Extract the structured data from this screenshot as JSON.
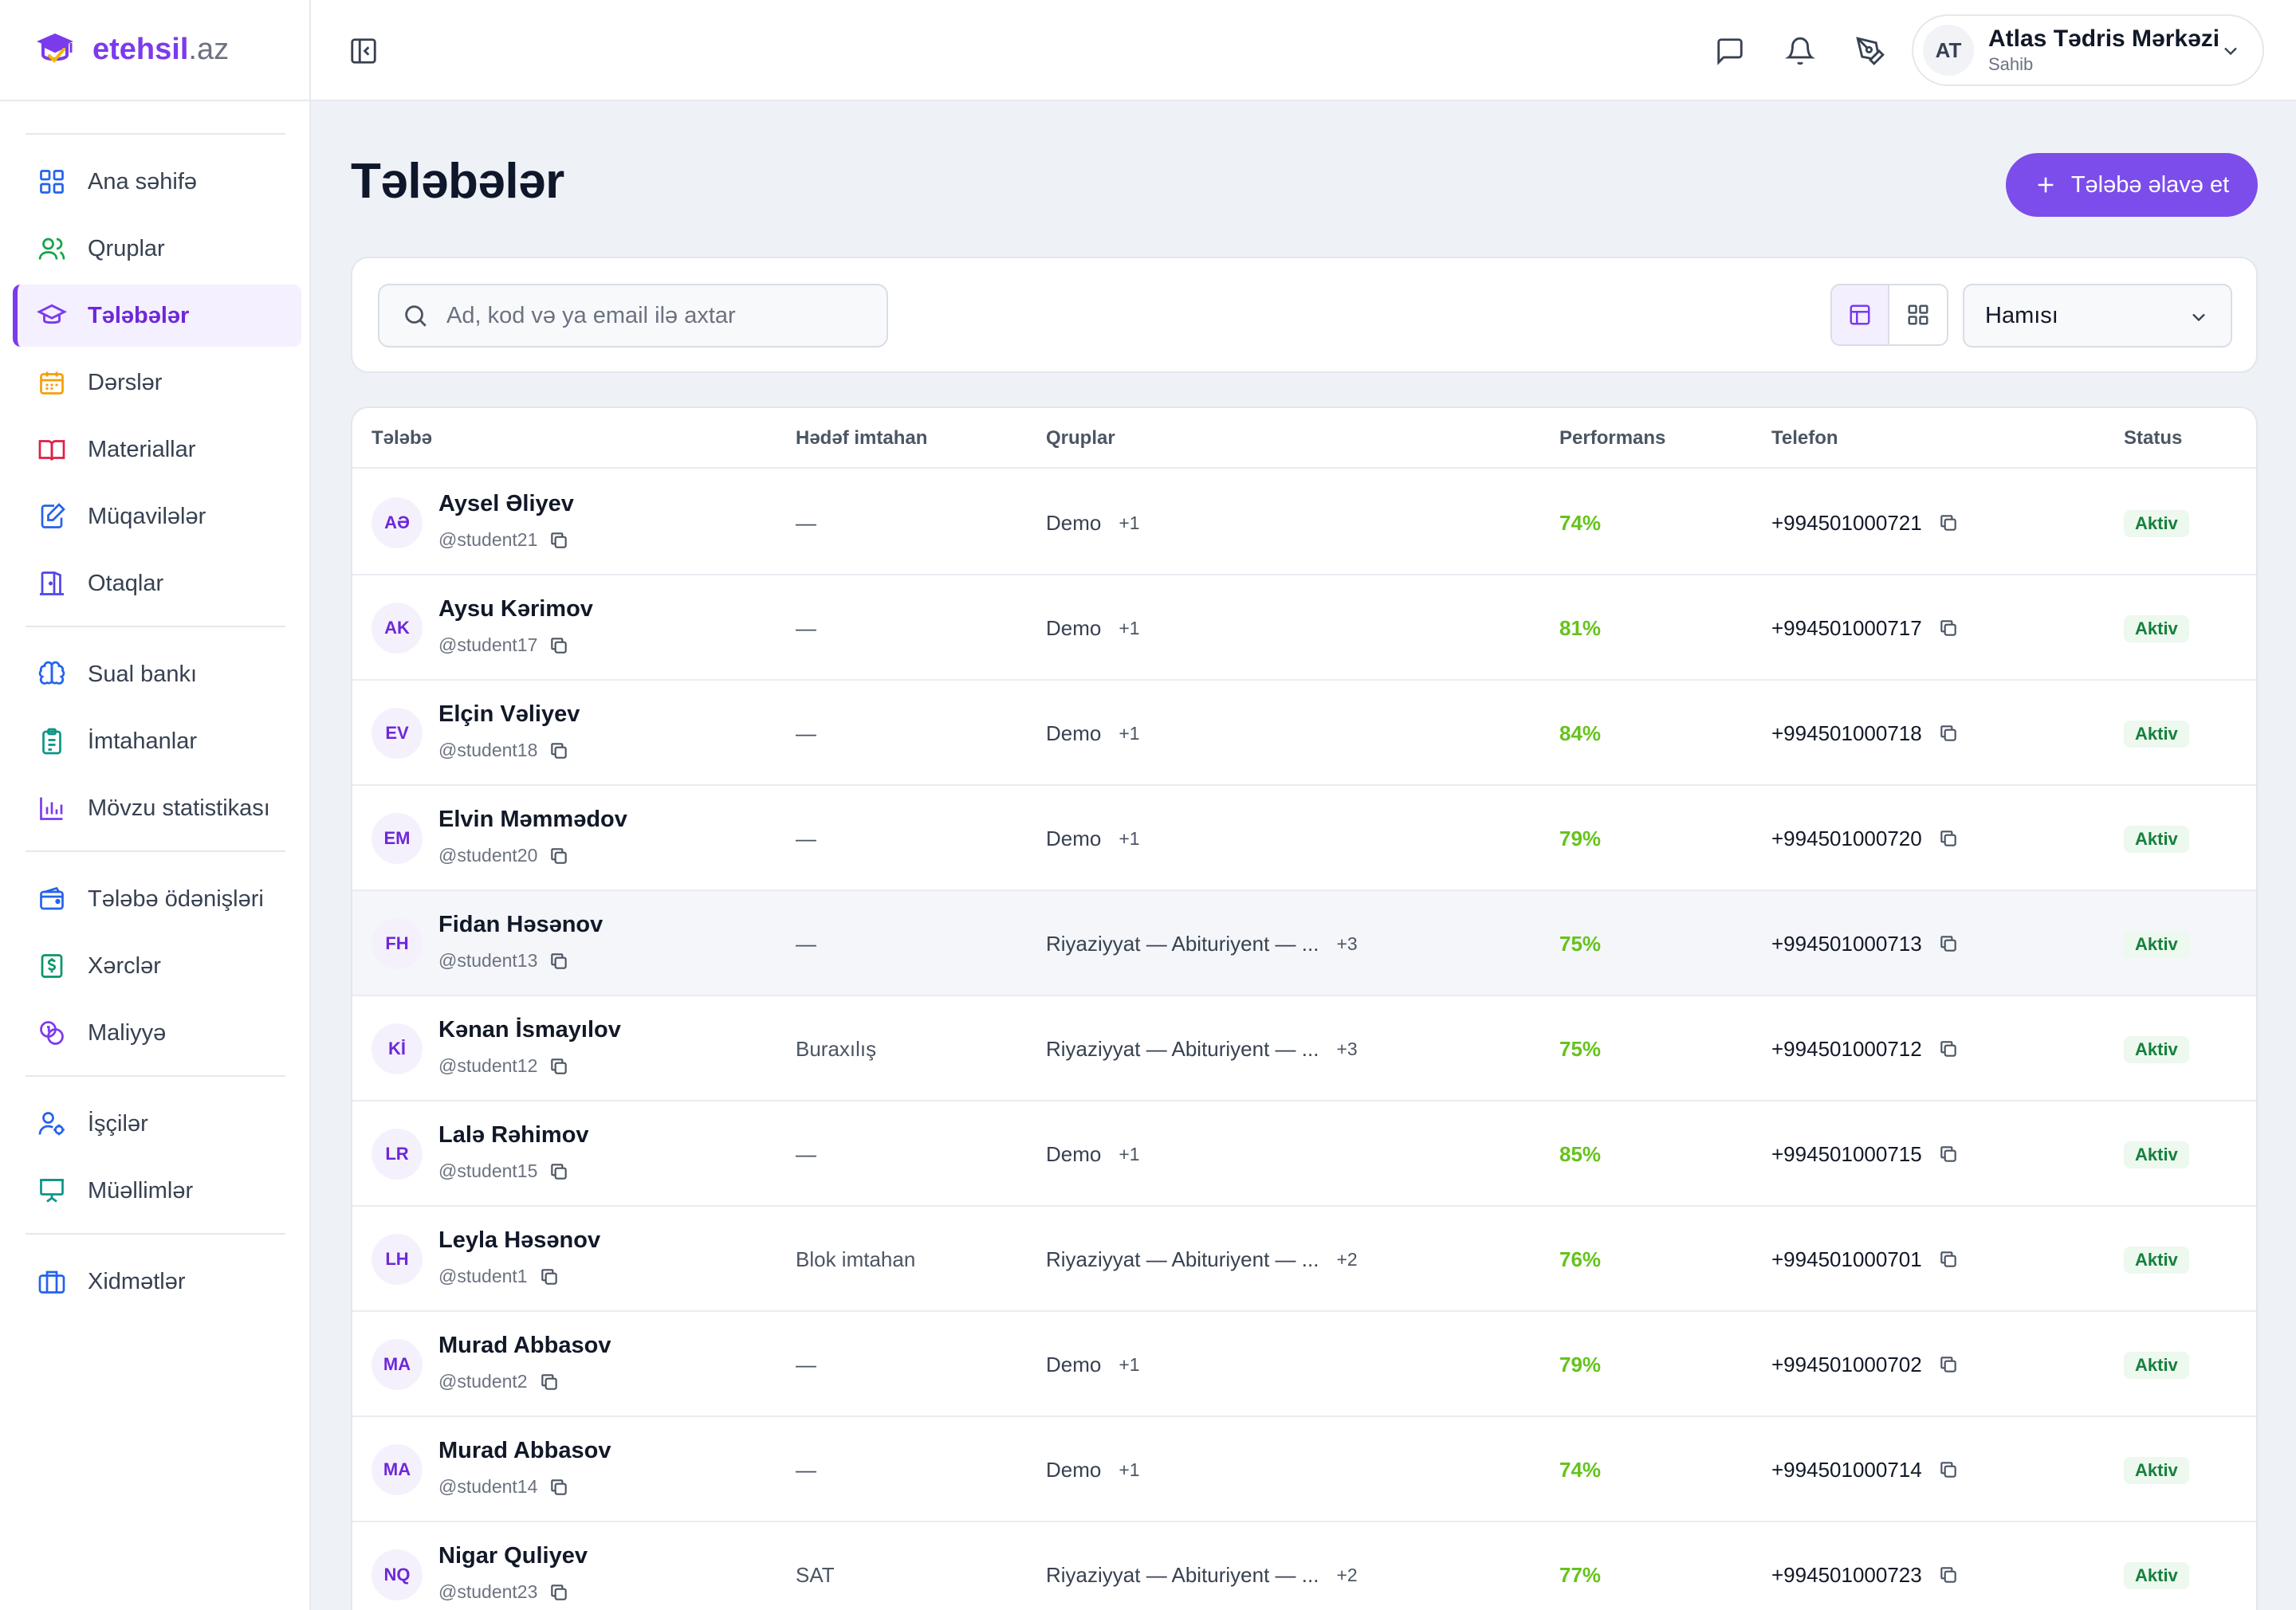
{
  "brand": {
    "name": "etehsil",
    "tld": ".az"
  },
  "sidebar": {
    "items": [
      {
        "label": "Ana səhifə",
        "icon": "grid-icon"
      },
      {
        "label": "Qruplar",
        "icon": "users-icon"
      },
      {
        "label": "Tələbələr",
        "icon": "graduation-cap-icon",
        "active": true
      },
      {
        "label": "Dərslər",
        "icon": "calendar-icon"
      },
      {
        "label": "Materiallar",
        "icon": "book-open-icon"
      },
      {
        "label": "Müqavilələr",
        "icon": "file-edit-icon"
      },
      {
        "label": "Otaqlar",
        "icon": "door-icon"
      },
      {
        "label": "Sual bankı",
        "icon": "brain-icon"
      },
      {
        "label": "İmtahanlar",
        "icon": "clipboard-list-icon"
      },
      {
        "label": "Mövzu statistikası",
        "icon": "bar-chart-icon"
      },
      {
        "label": "Tələbə ödənişləri",
        "icon": "wallet-icon"
      },
      {
        "label": "Xərclər",
        "icon": "dollar-receipt-icon"
      },
      {
        "label": "Maliyyə",
        "icon": "coins-icon"
      },
      {
        "label": "İşçilər",
        "icon": "user-cog-icon"
      },
      {
        "label": "Müəllimlər",
        "icon": "presentation-icon"
      },
      {
        "label": "Xidmətlər",
        "icon": "briefcase-icon"
      }
    ]
  },
  "topbar": {
    "user": {
      "initials": "AT",
      "name": "Atlas Tədris Mərkəzi",
      "role": "Sahib"
    }
  },
  "page": {
    "title": "Tələbələr",
    "add_button": "Tələbə əlavə et",
    "search_placeholder": "Ad, kod və ya email ilə axtar",
    "filter_value": "Hamısı"
  },
  "table": {
    "columns": [
      "Tələbə",
      "Hədəf imtahan",
      "Qruplar",
      "Performans",
      "Telefon",
      "Status"
    ],
    "rows": [
      {
        "initials": "AƏ",
        "name": "Aysel Əliyev",
        "handle": "@student21",
        "goal": "—",
        "group": "Demo",
        "more": "+1",
        "perf": "74%",
        "phone": "+994501000721",
        "status": "Aktiv"
      },
      {
        "initials": "AK",
        "name": "Aysu Kərimov",
        "handle": "@student17",
        "goal": "—",
        "group": "Demo",
        "more": "+1",
        "perf": "81%",
        "phone": "+994501000717",
        "status": "Aktiv"
      },
      {
        "initials": "EV",
        "name": "Elçin Vəliyev",
        "handle": "@student18",
        "goal": "—",
        "group": "Demo",
        "more": "+1",
        "perf": "84%",
        "phone": "+994501000718",
        "status": "Aktiv"
      },
      {
        "initials": "EM",
        "name": "Elvin Məmmədov",
        "handle": "@student20",
        "goal": "—",
        "group": "Demo",
        "more": "+1",
        "perf": "79%",
        "phone": "+994501000720",
        "status": "Aktiv"
      },
      {
        "initials": "FH",
        "name": "Fidan Həsənov",
        "handle": "@student13",
        "goal": "—",
        "group": "Riyaziyyat — Abituriyent — ...",
        "more": "+3",
        "perf": "75%",
        "phone": "+994501000713",
        "status": "Aktiv"
      },
      {
        "initials": "Kİ",
        "name": "Kənan İsmayılov",
        "handle": "@student12",
        "goal": "Buraxılış",
        "group": "Riyaziyyat — Abituriyent — ...",
        "more": "+3",
        "perf": "75%",
        "phone": "+994501000712",
        "status": "Aktiv"
      },
      {
        "initials": "LR",
        "name": "Lalə Rəhimov",
        "handle": "@student15",
        "goal": "—",
        "group": "Demo",
        "more": "+1",
        "perf": "85%",
        "phone": "+994501000715",
        "status": "Aktiv"
      },
      {
        "initials": "LH",
        "name": "Leyla Həsənov",
        "handle": "@student1",
        "goal": "Blok imtahan",
        "group": "Riyaziyyat — Abituriyent — ...",
        "more": "+2",
        "perf": "76%",
        "phone": "+994501000701",
        "status": "Aktiv"
      },
      {
        "initials": "MA",
        "name": "Murad Abbasov",
        "handle": "@student2",
        "goal": "—",
        "group": "Demo",
        "more": "+1",
        "perf": "79%",
        "phone": "+994501000702",
        "status": "Aktiv"
      },
      {
        "initials": "MA",
        "name": "Murad Abbasov",
        "handle": "@student14",
        "goal": "—",
        "group": "Demo",
        "more": "+1",
        "perf": "74%",
        "phone": "+994501000714",
        "status": "Aktiv"
      },
      {
        "initials": "NQ",
        "name": "Nigar Quliyev",
        "handle": "@student23",
        "goal": "SAT",
        "group": "Riyaziyyat — Abituriyent — ...",
        "more": "+2",
        "perf": "77%",
        "phone": "+994501000723",
        "status": "Aktiv"
      }
    ]
  },
  "colors": {
    "accent": "#7c4dea",
    "performance": "#65c31b",
    "status_bg": "#edf8ee",
    "status_text": "#15803d"
  }
}
